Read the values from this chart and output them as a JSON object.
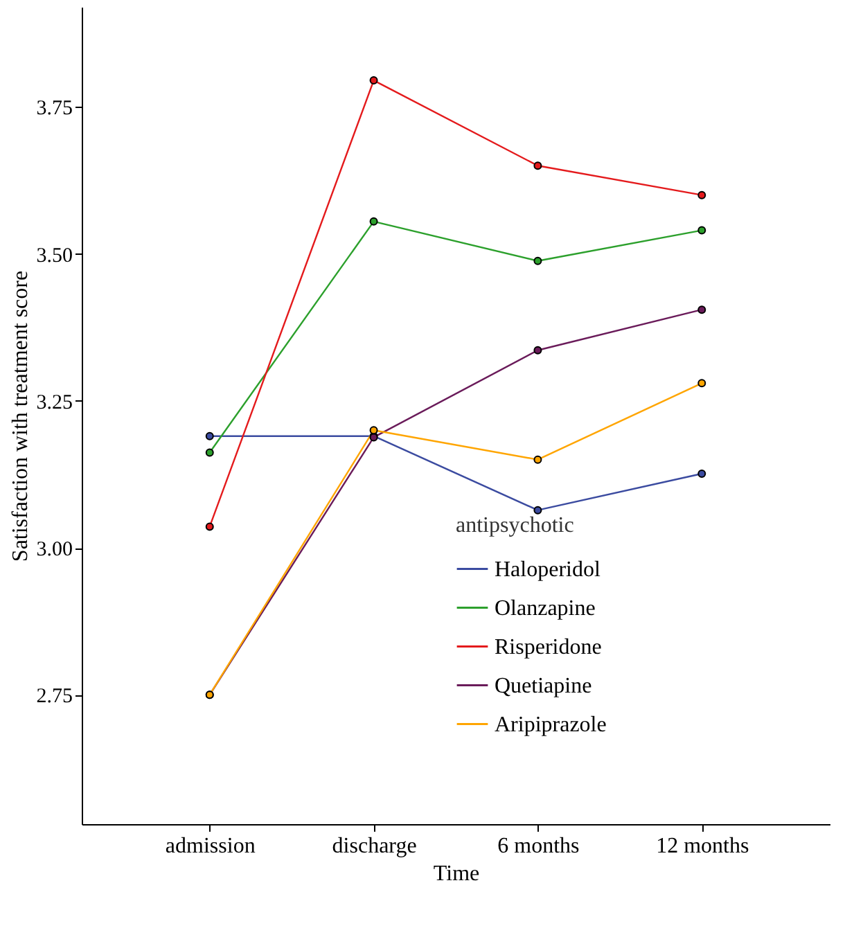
{
  "chart_data": {
    "type": "line",
    "xlabel": "Time",
    "ylabel": "Satisfaction with treatment score",
    "legend_title": "antipsychotic",
    "categories": [
      "admission",
      "discharge",
      "6 months",
      "12 months"
    ],
    "series": [
      {
        "name": "Haloperidol",
        "color": "#3b4ba0",
        "values": [
          3.19,
          3.19,
          3.064,
          3.126
        ]
      },
      {
        "name": "Olanzapine",
        "color": "#2ca02c",
        "values": [
          3.162,
          3.555,
          3.488,
          3.54
        ]
      },
      {
        "name": "Risperidone",
        "color": "#e41a1c",
        "values": [
          3.036,
          3.795,
          3.65,
          3.6
        ]
      },
      {
        "name": "Quetiapine",
        "color": "#6a1b5a",
        "values": [
          2.75,
          3.188,
          3.336,
          3.405
        ]
      },
      {
        "name": "Aripiprazole",
        "color": "#ffa500",
        "values": [
          2.75,
          3.2,
          3.15,
          3.28
        ]
      }
    ],
    "ylim": [
      2.53,
      3.92
    ],
    "yticks": [
      2.75,
      {
        "value": 3.0,
        "label": "3.00"
      },
      3.25,
      {
        "value": 3.5,
        "label": "3.50"
      },
      3.75
    ],
    "grid": false,
    "legend": "bottom right",
    "marker": "circle",
    "line_style": "solid"
  }
}
